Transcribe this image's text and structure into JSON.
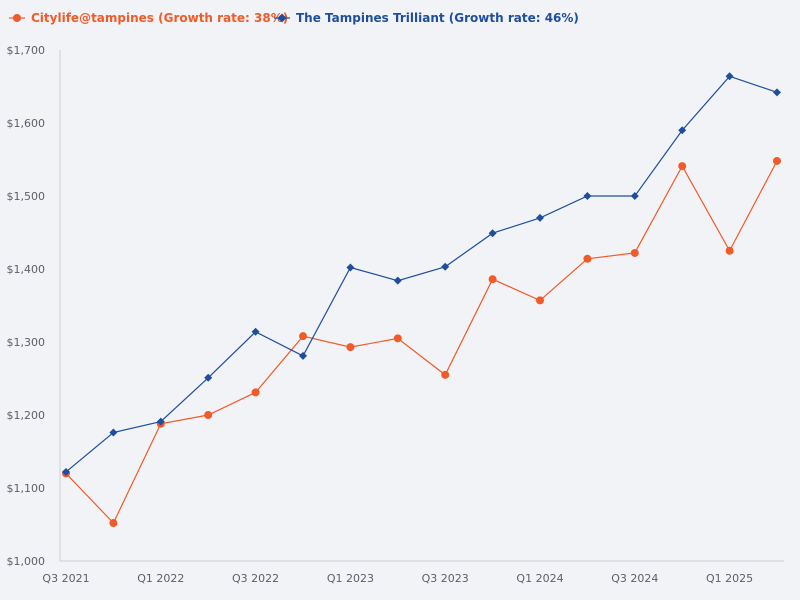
{
  "chart_data": {
    "type": "line",
    "title": "",
    "xlabel": "",
    "ylabel": "",
    "ylim": [
      1000,
      1700
    ],
    "yticks": [
      1000,
      1100,
      1200,
      1300,
      1400,
      1500,
      1600,
      1700
    ],
    "ytick_labels": [
      "$1,000",
      "$1,100",
      "$1,200",
      "$1,300",
      "$1,400",
      "$1,500",
      "$1,600",
      "$1,700"
    ],
    "categories": [
      "Q3 2021",
      "Q4 2021",
      "Q1 2022",
      "Q2 2022",
      "Q3 2022",
      "Q4 2022",
      "Q1 2023",
      "Q2 2023",
      "Q3 2023",
      "Q4 2023",
      "Q1 2024",
      "Q2 2024",
      "Q3 2024",
      "Q4 2024",
      "Q1 2025",
      "Q2 2025"
    ],
    "x_tick_labels": [
      "Q3 2021",
      "Q1 2022",
      "Q3 2022",
      "Q1 2023",
      "Q3 2023",
      "Q1 2024",
      "Q3 2024",
      "Q1 2025"
    ],
    "legend_position": "top-left",
    "series": [
      {
        "name": "Citylife@tampines (Growth rate: 38%)",
        "color": "#f15a29",
        "marker": "circle",
        "values": [
          1120,
          1052,
          1188,
          1200,
          1231,
          1308,
          1293,
          1305,
          1255,
          1386,
          1357,
          1414,
          1422,
          1541,
          1425,
          1548
        ]
      },
      {
        "name": "The Tampines Trilliant (Growth rate: 46%)",
        "color": "#1f4e9c",
        "marker": "diamond",
        "values": [
          1122,
          1176,
          1191,
          1251,
          1314,
          1281,
          1402,
          1384,
          1403,
          1449,
          1470,
          1500,
          1500,
          1590,
          1664,
          1642
        ]
      }
    ]
  }
}
